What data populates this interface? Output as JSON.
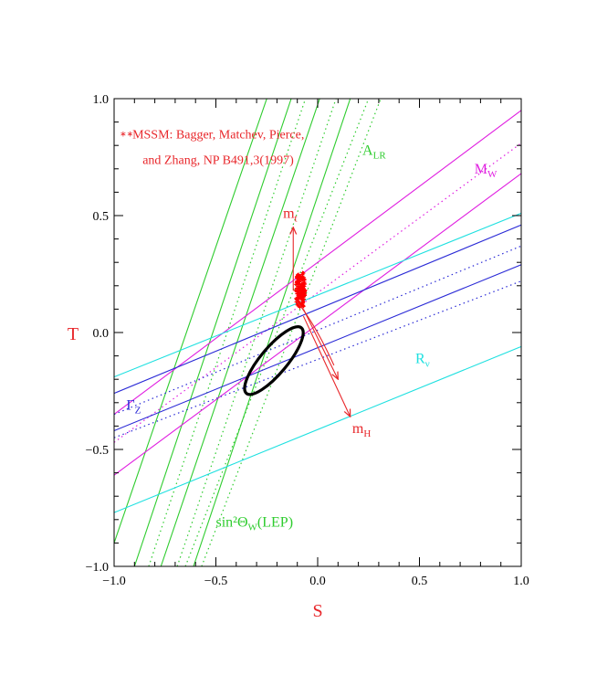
{
  "chart_data": {
    "type": "line",
    "xlabel": "S",
    "ylabel": "T",
    "xlim": [
      -1.0,
      1.0
    ],
    "ylim": [
      -1.0,
      1.0
    ],
    "xticks": [
      {
        "value": -1.0,
        "label": "−1.0"
      },
      {
        "value": -0.5,
        "label": "−0.5"
      },
      {
        "value": 0.0,
        "label": "0.0"
      },
      {
        "value": 0.5,
        "label": "0.5"
      },
      {
        "value": 1.0,
        "label": "1.0"
      }
    ],
    "yticks": [
      {
        "value": -1.0,
        "label": "−1.0"
      },
      {
        "value": -0.5,
        "label": "−0.5"
      },
      {
        "value": 0.0,
        "label": "0.0"
      },
      {
        "value": 0.5,
        "label": "0.5"
      },
      {
        "value": 1.0,
        "label": "1.0"
      }
    ],
    "grid": false,
    "colors": {
      "A_LR": "#2ecc2e",
      "M_W": "#e01ee0",
      "R_v": "#1ee0e0",
      "Gamma_Z": "#2a2ad6",
      "sin2": "#2ecc2e",
      "arrows": "#e8262a",
      "mssm": "#ff0000",
      "ellipse": "#000000"
    },
    "bands": [
      {
        "id": "A_LR",
        "color": "#2ecc2e",
        "lines": [
          {
            "p1": [
              -1.0,
              -0.9
            ],
            "p2": [
              -0.25,
              1.0
            ],
            "style": "solid"
          },
          {
            "p1": [
              -0.9,
              -1.0
            ],
            "p2": [
              -0.13,
              1.0
            ],
            "style": "solid"
          },
          {
            "p1": [
              -0.83,
              -1.0
            ],
            "p2": [
              -0.06,
              1.0
            ],
            "style": "dotted"
          },
          {
            "p1": [
              -0.77,
              -1.0
            ],
            "p2": [
              0.01,
              1.0
            ],
            "style": "solid"
          },
          {
            "p1": [
              -0.69,
              -1.0
            ],
            "p2": [
              0.09,
              1.0
            ],
            "style": "dotted"
          },
          {
            "p1": [
              -0.61,
              -1.0
            ],
            "p2": [
              0.16,
              1.0
            ],
            "style": "solid"
          }
        ]
      },
      {
        "id": "sin2",
        "color": "#2ecc2e",
        "lines": [
          {
            "p1": [
              -0.65,
              -1.0
            ],
            "p2": [
              0.25,
              1.0
            ],
            "style": "dotted"
          },
          {
            "p1": [
              -0.57,
              -1.0
            ],
            "p2": [
              0.31,
              1.0
            ],
            "style": "dotted"
          }
        ]
      },
      {
        "id": "M_W",
        "color": "#e01ee0",
        "lines": [
          {
            "p1": [
              -1.0,
              -0.61
            ],
            "p2": [
              1.0,
              0.68
            ],
            "style": "solid"
          },
          {
            "p1": [
              -1.0,
              -0.47
            ],
            "p2": [
              1.0,
              0.81
            ],
            "style": "dotted"
          },
          {
            "p1": [
              -1.0,
              -0.35
            ],
            "p2": [
              1.0,
              0.95
            ],
            "style": "solid"
          }
        ]
      },
      {
        "id": "R_v",
        "color": "#1ee0e0",
        "lines": [
          {
            "p1": [
              -1.0,
              -0.77
            ],
            "p2": [
              1.0,
              -0.06
            ],
            "style": "solid"
          },
          {
            "p1": [
              -1.0,
              -0.19
            ],
            "p2": [
              1.0,
              0.51
            ],
            "style": "solid"
          }
        ]
      },
      {
        "id": "Gamma_Z",
        "color": "#2a2ad6",
        "lines": [
          {
            "p1": [
              -1.0,
              -0.42
            ],
            "p2": [
              1.0,
              0.29
            ],
            "style": "solid"
          },
          {
            "p1": [
              -1.0,
              -0.35
            ],
            "p2": [
              1.0,
              0.37
            ],
            "style": "dotted"
          },
          {
            "p1": [
              -1.0,
              -0.26
            ],
            "p2": [
              1.0,
              0.46
            ],
            "style": "solid"
          },
          {
            "p1": [
              -1.0,
              -0.45
            ],
            "p2": [
              1.0,
              0.22
            ],
            "style": "dotted"
          }
        ]
      }
    ],
    "ellipse": {
      "cx": -0.215,
      "cy": -0.12,
      "rx": 0.21,
      "ry": 0.065,
      "angle_deg": -50
    },
    "mssm_cluster": {
      "center": [
        -0.085,
        0.18
      ],
      "spread_x": 0.025,
      "spread_y": 0.07,
      "points": 150
    },
    "arrows": [
      {
        "label": "m_t",
        "from": [
          -0.12,
          0.18
        ],
        "to": [
          -0.12,
          0.45
        ]
      },
      {
        "label": "m_H",
        "from": [
          -0.07,
          0.07
        ],
        "to": [
          0.16,
          -0.36
        ]
      },
      {
        "label": "",
        "from": [
          -0.07,
          0.1
        ],
        "to": [
          0.1,
          -0.2
        ]
      }
    ],
    "annotations": [
      {
        "id": "mssm_note_1",
        "text": "MSSM: Bagger, Matchev, Pierce,",
        "x": -0.91,
        "y": 0.83,
        "color": "#e8262a"
      },
      {
        "id": "mssm_note_2",
        "text": "and Zhang, NP B491,3(1997)",
        "x": -0.86,
        "y": 0.72,
        "color": "#e8262a"
      },
      {
        "id": "A_LR",
        "main": "A",
        "sub": "LR",
        "x": 0.22,
        "y": 0.76,
        "color": "#2ecc2e"
      },
      {
        "id": "M_W",
        "main": "M",
        "sub": "W",
        "x": 0.77,
        "y": 0.68,
        "color": "#e01ee0"
      },
      {
        "id": "m_t",
        "main": "m",
        "sub": "t",
        "x": -0.17,
        "y": 0.49,
        "color": "#e8262a"
      },
      {
        "id": "R_v",
        "main": "R",
        "sub": "ν",
        "x": 0.48,
        "y": -0.13,
        "color": "#1ee0e0"
      },
      {
        "id": "Gamma_Z",
        "main": "Γ",
        "sub": "Z",
        "x": -0.94,
        "y": -0.33,
        "color": "#2a2ad6"
      },
      {
        "id": "m_H",
        "main": "m",
        "sub": "H",
        "x": 0.17,
        "y": -0.43,
        "color": "#e8262a"
      },
      {
        "id": "sin2",
        "main": "sin²Θ",
        "sub": "W",
        "tail": "(LEP)",
        "x": -0.5,
        "y": -0.83,
        "color": "#2ecc2e"
      }
    ]
  }
}
